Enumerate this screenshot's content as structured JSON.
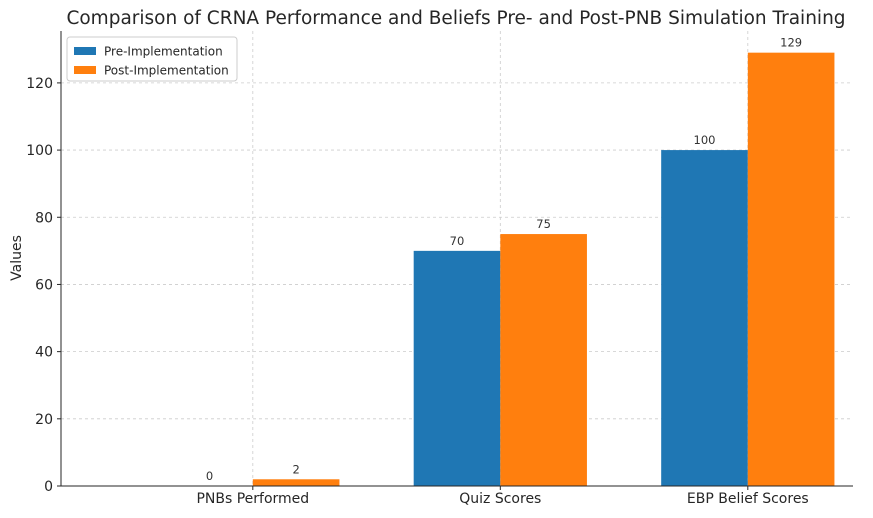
{
  "chart_data": {
    "type": "bar",
    "title": "Comparison of CRNA Performance and Beliefs Pre- and Post-PNB Simulation Training",
    "xlabel": "",
    "ylabel": "Values",
    "categories": [
      "PNBs Performed",
      "Quiz Scores",
      "EBP Belief Scores"
    ],
    "series": [
      {
        "name": "Pre-Implementation",
        "values": [
          0,
          70,
          100
        ],
        "color": "#1f77b4"
      },
      {
        "name": "Post-Implementation",
        "values": [
          2,
          75,
          129
        ],
        "color": "#ff7f0e"
      }
    ],
    "ylim": [
      0,
      135.45
    ],
    "yticks": [
      0,
      20,
      40,
      60,
      80,
      100,
      120
    ],
    "grid": true,
    "legend_position": "top-left",
    "data_labels": true
  }
}
